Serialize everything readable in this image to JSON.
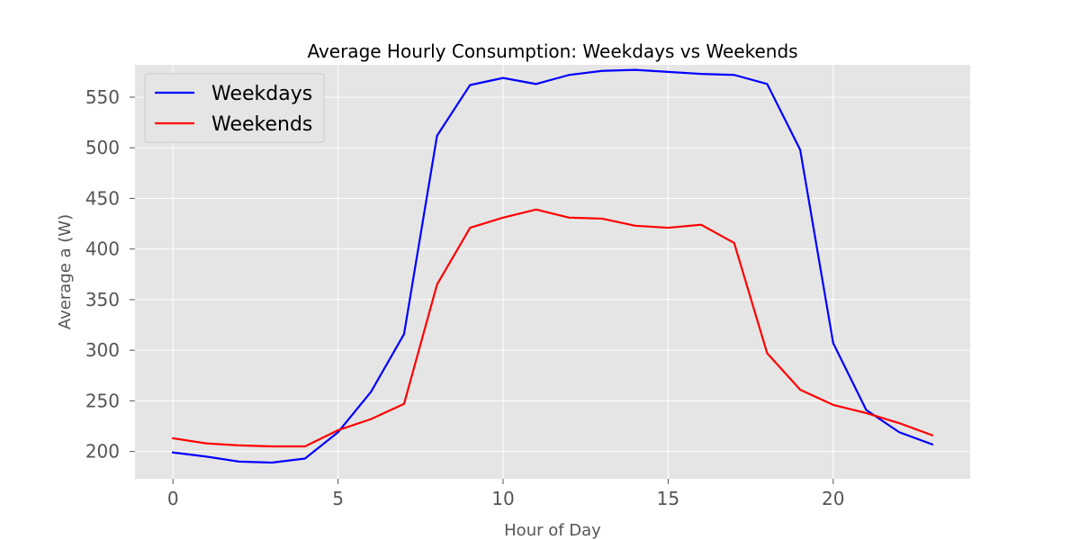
{
  "chart_data": {
    "type": "line",
    "title": "Average Hourly Consumption: Weekdays vs Weekends",
    "xlabel": "Hour of Day",
    "ylabel": "Average a (W)",
    "x": [
      0,
      1,
      2,
      3,
      4,
      5,
      6,
      7,
      8,
      9,
      10,
      11,
      12,
      13,
      14,
      15,
      16,
      17,
      18,
      19,
      20,
      21,
      22,
      23
    ],
    "xlim": [
      -1.15,
      24.15
    ],
    "ylim": [
      173,
      582
    ],
    "xticks": [
      0,
      5,
      10,
      15,
      20
    ],
    "yticks": [
      200,
      250,
      300,
      350,
      400,
      450,
      500,
      550
    ],
    "grid": true,
    "legend_position": "top-left",
    "series": [
      {
        "name": "Weekdays",
        "color": "#0000ff",
        "values": [
          199,
          195,
          190,
          189,
          193,
          219,
          259,
          316,
          512,
          562,
          569,
          563,
          572,
          576,
          577,
          575,
          573,
          572,
          563,
          498,
          307,
          241,
          219,
          207
        ]
      },
      {
        "name": "Weekends",
        "color": "#ff0000",
        "values": [
          213,
          208,
          206,
          205,
          205,
          221,
          232,
          247,
          365,
          421,
          431,
          439,
          431,
          430,
          423,
          421,
          424,
          406,
          297,
          261,
          246,
          238,
          228,
          216
        ]
      }
    ]
  }
}
